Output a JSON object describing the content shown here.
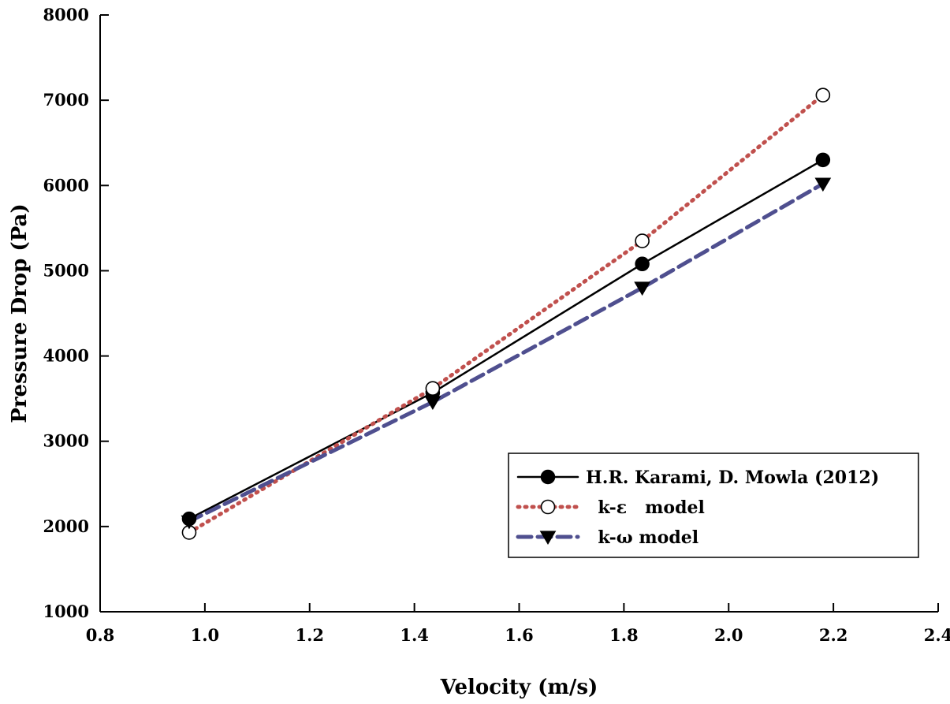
{
  "chart_data": {
    "type": "line",
    "title": "",
    "xlabel": "Velocity (m/s)",
    "ylabel": "Pressure Drop (Pa)",
    "xlim": [
      0.8,
      2.4
    ],
    "ylim": [
      1000,
      8000
    ],
    "xticks": [
      0.8,
      1.0,
      1.2,
      1.4,
      1.6,
      1.8,
      2.0,
      2.2,
      2.4
    ],
    "xtick_labels": [
      "0.8",
      "1.0",
      "1.2",
      "1.4",
      "1.6",
      "1.8",
      "2.0",
      "2.2",
      "2.4"
    ],
    "yticks": [
      1000,
      2000,
      3000,
      4000,
      5000,
      6000,
      7000,
      8000
    ],
    "ytick_labels": [
      "1000",
      "2000",
      "3000",
      "4000",
      "5000",
      "6000",
      "7000",
      "8000"
    ],
    "grid": false,
    "legend_position": "bottom-right",
    "series": [
      {
        "name": "H.R. Karami, D. Mowla (2012)",
        "legend_label": "H.R. Karami, D. Mowla (2012)",
        "x": [
          0.97,
          1.435,
          1.835,
          2.18
        ],
        "values": [
          2090,
          3570,
          5080,
          6300
        ],
        "color": "#000000",
        "line_style": "solid",
        "marker": "filled-circle"
      },
      {
        "name": "k-ε model",
        "legend_label": "  k-ε   model",
        "x": [
          0.97,
          1.435,
          1.835,
          2.18
        ],
        "values": [
          1930,
          3620,
          5350,
          7060
        ],
        "color": "#c0504d",
        "line_style": "dotted",
        "marker": "open-circle"
      },
      {
        "name": "k-ω model",
        "legend_label": "  k-ω model",
        "x": [
          0.97,
          1.435,
          1.835,
          2.18
        ],
        "values": [
          2060,
          3460,
          4800,
          6020
        ],
        "color": "#4f4f8f",
        "line_style": "dashed",
        "marker": "filled-triangle-down"
      }
    ]
  }
}
